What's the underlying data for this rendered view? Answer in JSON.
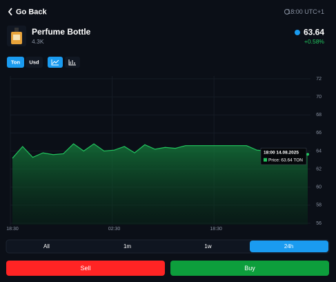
{
  "header": {
    "back": "Go Back",
    "time": "18:00 UTC+1"
  },
  "item": {
    "name": "Perfume Bottle",
    "count": "4.3K",
    "price": "63.64",
    "change": "+0.58%"
  },
  "currency": [
    "Ton",
    "Usd"
  ],
  "chart_data": {
    "type": "line",
    "categories": [
      "18:30",
      null,
      null,
      null,
      null,
      null,
      null,
      null,
      null,
      null,
      "02:30",
      null,
      null,
      null,
      null,
      null,
      null,
      null,
      null,
      null,
      "18:30",
      null,
      null,
      null,
      null,
      null,
      null,
      null,
      null,
      null
    ],
    "series": [
      {
        "color": "#22c55e",
        "values": [
          63.2,
          64.5,
          63.3,
          63.8,
          63.6,
          63.7,
          64.8,
          64.0,
          64.8,
          64.0,
          64.1,
          64.5,
          63.8,
          64.7,
          64.2,
          64.4,
          64.3,
          64.6,
          64.6,
          64.6,
          64.6,
          64.6,
          64.6,
          64.6,
          64.1,
          64.0,
          64.0,
          64.0,
          63.9,
          63.64
        ]
      }
    ],
    "ylim": [
      56,
      72
    ],
    "yticks": [
      56,
      58,
      60,
      62,
      64,
      66,
      68,
      70,
      72
    ],
    "grid": true,
    "tooltip": {
      "title": "18:00 14.08.2025",
      "text": "Price: 63.64 TON"
    }
  },
  "ranges": [
    "All",
    "1m",
    "1w",
    "24h"
  ],
  "actions": [
    "Sell",
    "Buy"
  ]
}
